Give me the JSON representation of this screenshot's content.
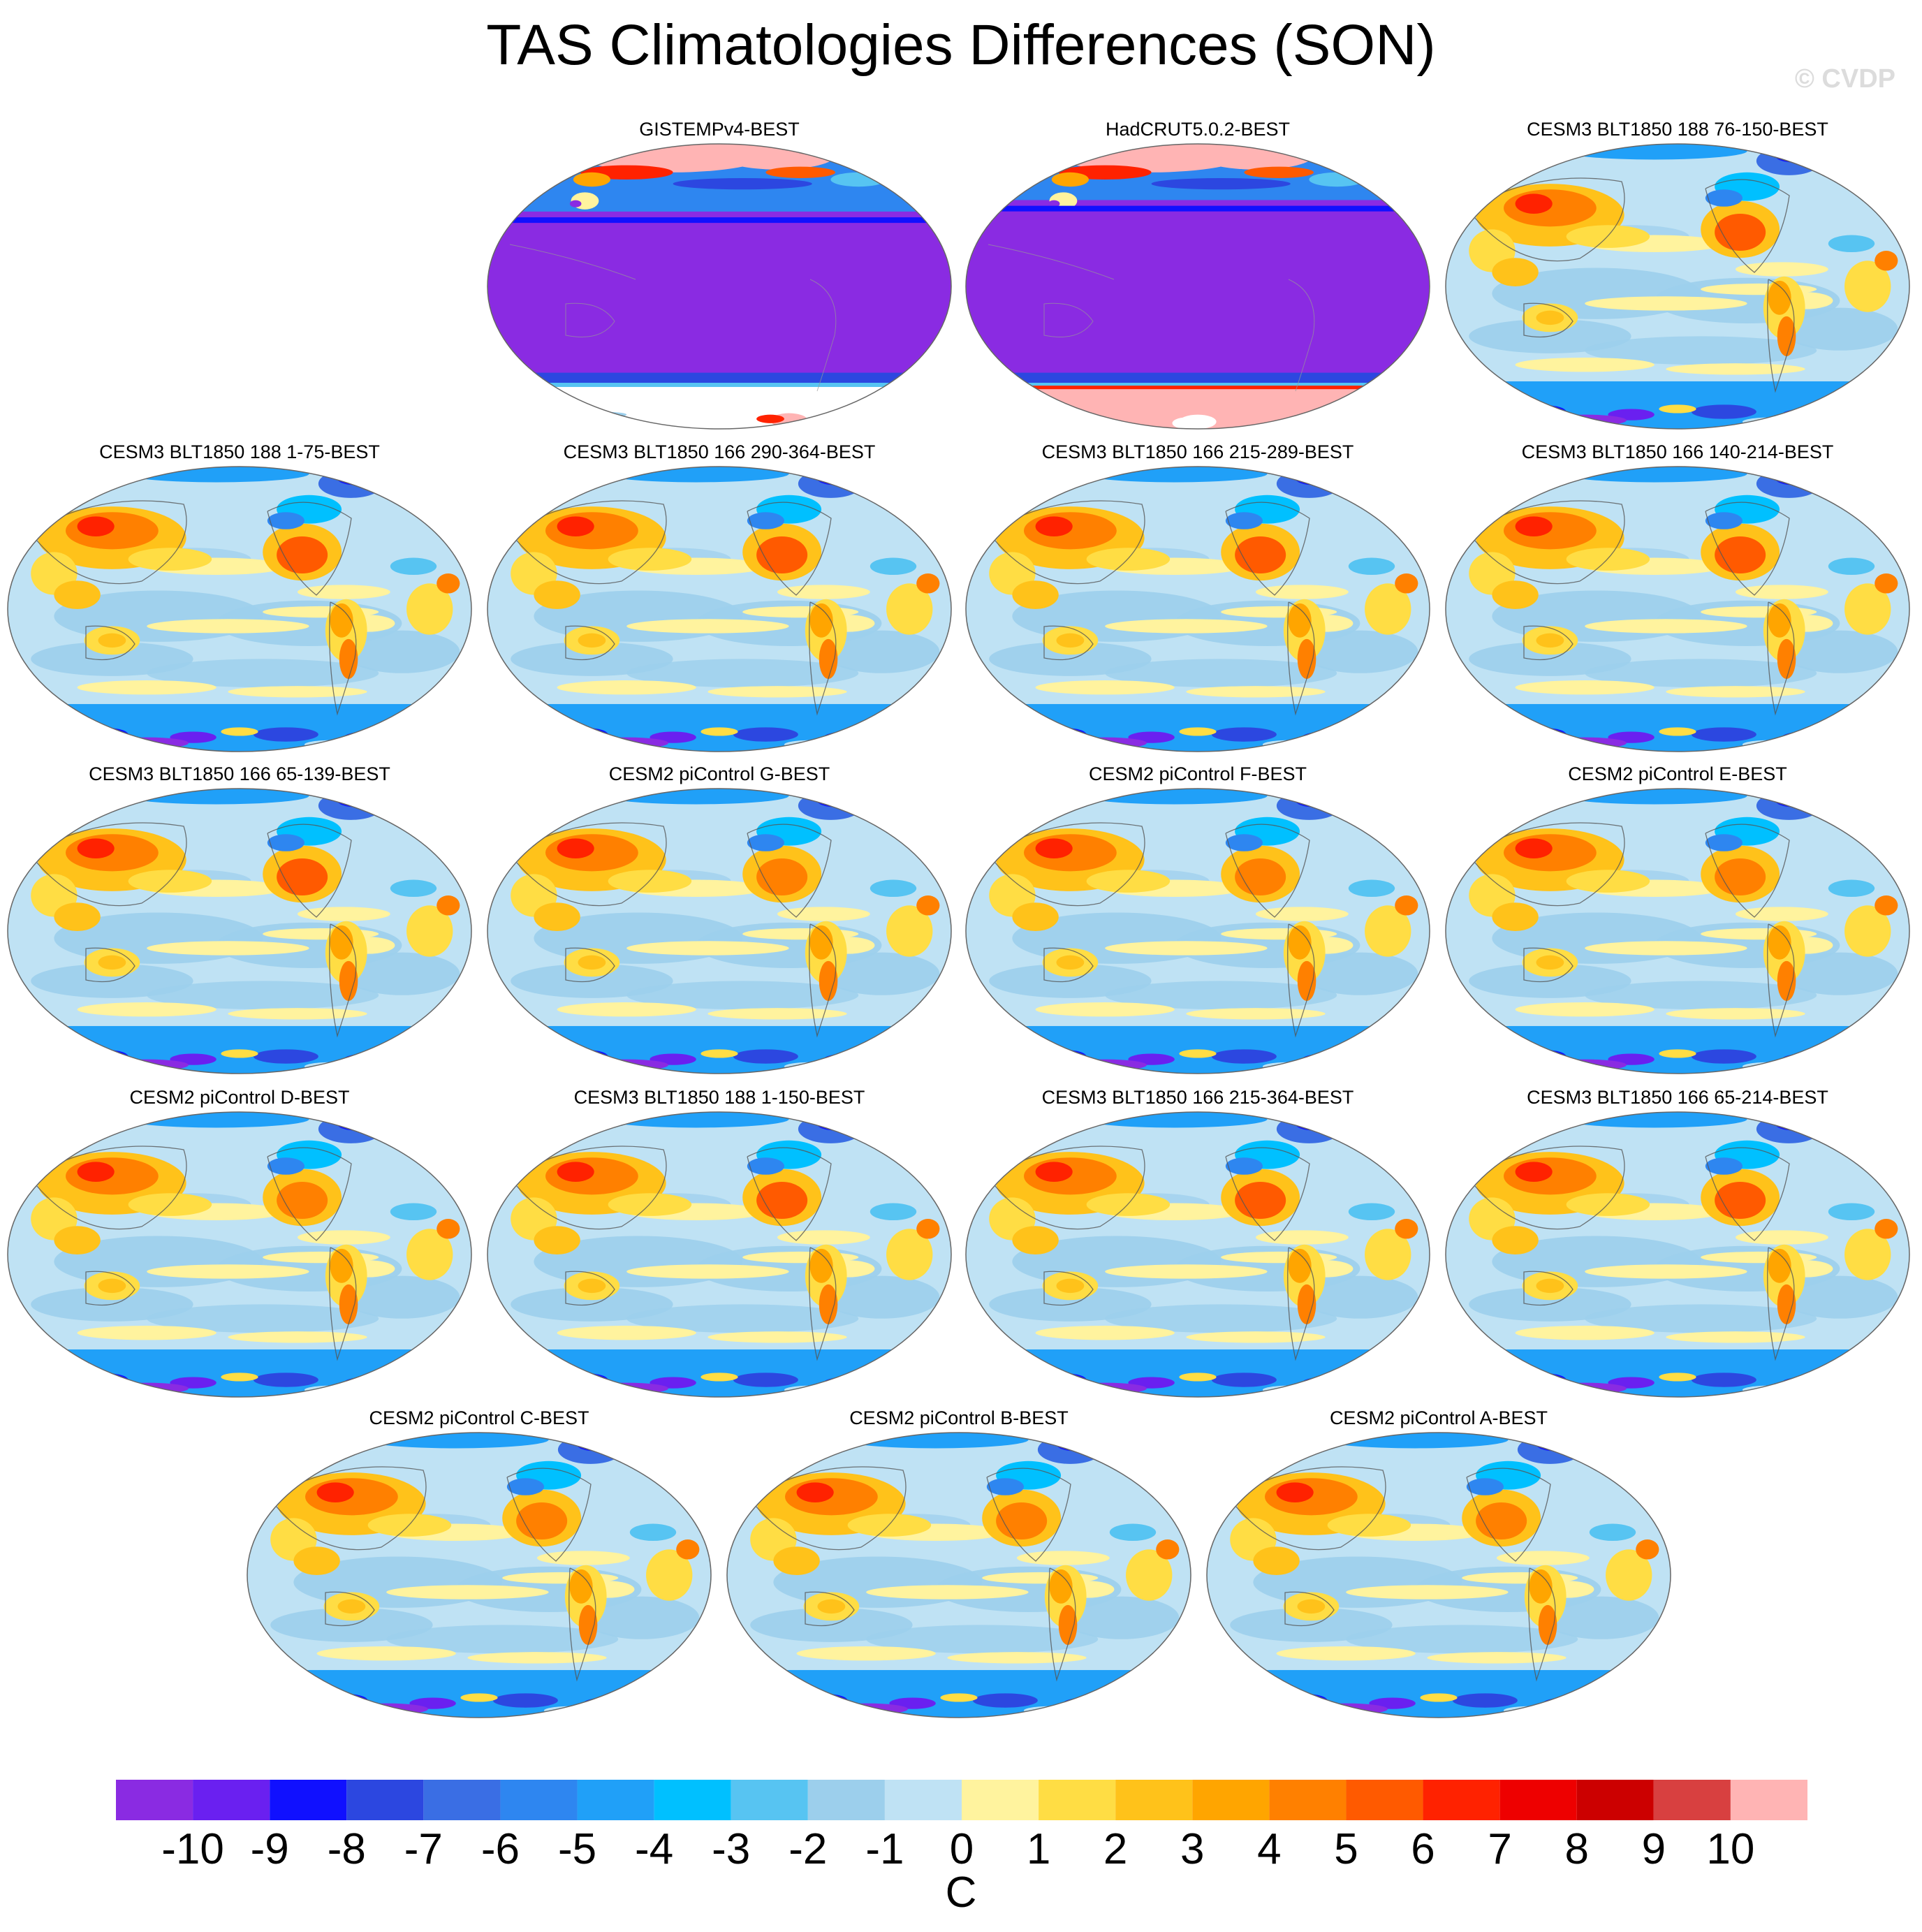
{
  "title": "TAS Climatologies Differences (SON)",
  "watermark": "© CVDP",
  "colorbar": {
    "units": "C",
    "colors": [
      "#8a2be2",
      "#6a20f0",
      "#1010ff",
      "#2c47e0",
      "#3a6ee4",
      "#2e86f0",
      "#20a0f8",
      "#00c0ff",
      "#57c4f2",
      "#9ccfec",
      "#bfe2f4",
      "#fff39e",
      "#ffdd44",
      "#ffc21a",
      "#ffa500",
      "#ff8000",
      "#ff5a00",
      "#ff2200",
      "#ee0000",
      "#cc0000",
      "#d84040",
      "#ffb4b4"
    ],
    "labels": [
      "-10",
      "-9",
      "-8",
      "-7",
      "-6",
      "-5",
      "-4",
      "-3",
      "-2",
      "-1",
      "0",
      "1",
      "2",
      "3",
      "4",
      "5",
      "6",
      "7",
      "8",
      "9",
      "10"
    ]
  },
  "panels": [
    {
      "title": "GISTEMPv4-BEST",
      "style": "obs"
    },
    {
      "title": "HadCRUT5.0.2-BEST",
      "style": "obs"
    },
    {
      "title": "CESM3 BLT1850 188 76-150-BEST",
      "style": "cesm3"
    },
    {
      "title": "CESM3 BLT1850 188 1-75-BEST",
      "style": "cesm3"
    },
    {
      "title": "CESM3 BLT1850 166 290-364-BEST",
      "style": "cesm3"
    },
    {
      "title": "CESM3 BLT1850 166 215-289-BEST",
      "style": "cesm3"
    },
    {
      "title": "CESM3 BLT1850 166 140-214-BEST",
      "style": "cesm3"
    },
    {
      "title": "CESM3 BLT1850 166 65-139-BEST",
      "style": "cesm3"
    },
    {
      "title": "CESM2 piControl G-BEST",
      "style": "cesm2"
    },
    {
      "title": "CESM2 piControl F-BEST",
      "style": "cesm2"
    },
    {
      "title": "CESM2 piControl E-BEST",
      "style": "cesm2"
    },
    {
      "title": "CESM2 piControl D-BEST",
      "style": "cesm2"
    },
    {
      "title": "CESM3 BLT1850 188 1-150-BEST",
      "style": "cesm3"
    },
    {
      "title": "CESM3 BLT1850 166 215-364-BEST",
      "style": "cesm3"
    },
    {
      "title": "CESM3 BLT1850 166 65-214-BEST",
      "style": "cesm3"
    },
    {
      "title": "CESM2 piControl C-BEST",
      "style": "cesm2"
    },
    {
      "title": "CESM2 piControl B-BEST",
      "style": "cesm2"
    },
    {
      "title": "CESM2 piControl A-BEST",
      "style": "cesm2"
    }
  ]
}
